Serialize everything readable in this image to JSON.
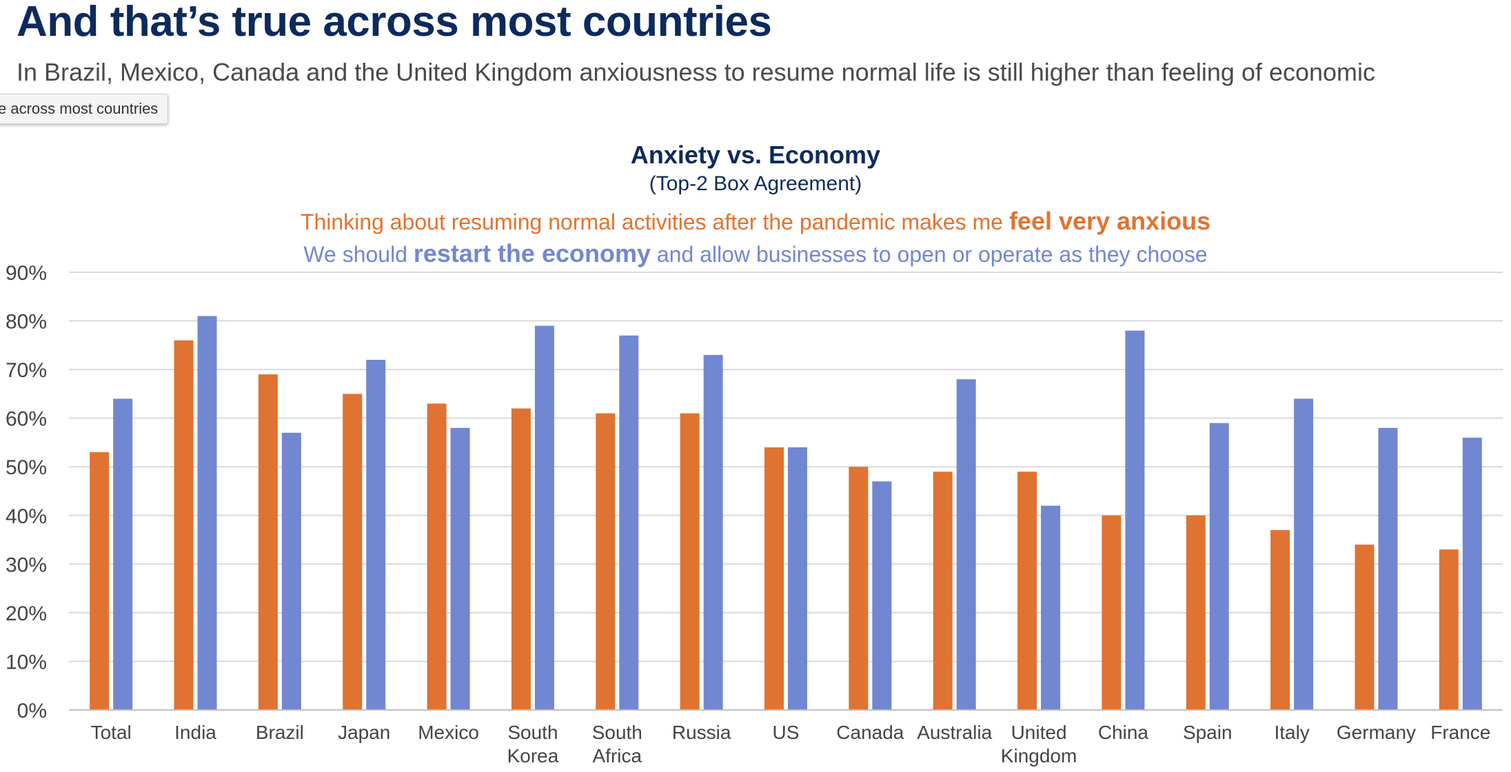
{
  "header": {
    "title": "And that’s true across most countries",
    "subtitle": "In Brazil, Mexico, Canada and the United Kingdom anxiousness to resume normal life is still higher than feeling of economic",
    "tooltip": "e across most countries"
  },
  "legend": {
    "anxious_prefix": "Thinking about resuming normal activities after the pandemic makes me ",
    "anxious_bold": "feel very anxious",
    "economy_prefix": "We should ",
    "economy_bold": "restart the economy",
    "economy_suffix": " and allow businesses to open or operate as they choose"
  },
  "colors": {
    "anxious": "#e07331",
    "economy": "#7287d1",
    "grid": "#d9d9d9",
    "title": "#0d2a5c"
  },
  "chart_data": {
    "type": "bar",
    "title": "Anxiety vs. Economy",
    "subtitle": "(Top-2 Box Agreement)",
    "categories": [
      [
        "Total"
      ],
      [
        "India"
      ],
      [
        "Brazil"
      ],
      [
        "Japan"
      ],
      [
        "Mexico"
      ],
      [
        "South",
        "Korea"
      ],
      [
        "South",
        "Africa"
      ],
      [
        "Russia"
      ],
      [
        "US"
      ],
      [
        "Canada"
      ],
      [
        "Australia"
      ],
      [
        "United",
        "Kingdom"
      ],
      [
        "China"
      ],
      [
        "Spain"
      ],
      [
        "Italy"
      ],
      [
        "Germany"
      ],
      [
        "France"
      ]
    ],
    "series": [
      {
        "name": "Thinking about resuming normal activities after the pandemic makes me feel very anxious",
        "values": [
          53,
          76,
          69,
          65,
          63,
          62,
          61,
          61,
          54,
          50,
          49,
          49,
          40,
          40,
          37,
          34,
          33
        ]
      },
      {
        "name": "We should restart the economy and allow businesses to open or operate as they choose",
        "values": [
          64,
          81,
          57,
          72,
          58,
          79,
          77,
          73,
          54,
          47,
          68,
          42,
          78,
          59,
          64,
          58,
          56
        ]
      }
    ],
    "ylim": [
      0,
      90
    ],
    "yticks": [
      "0%",
      "10%",
      "20%",
      "30%",
      "40%",
      "50%",
      "60%",
      "70%",
      "80%",
      "90%"
    ],
    "grid": true,
    "legend_placement": "top-center"
  }
}
